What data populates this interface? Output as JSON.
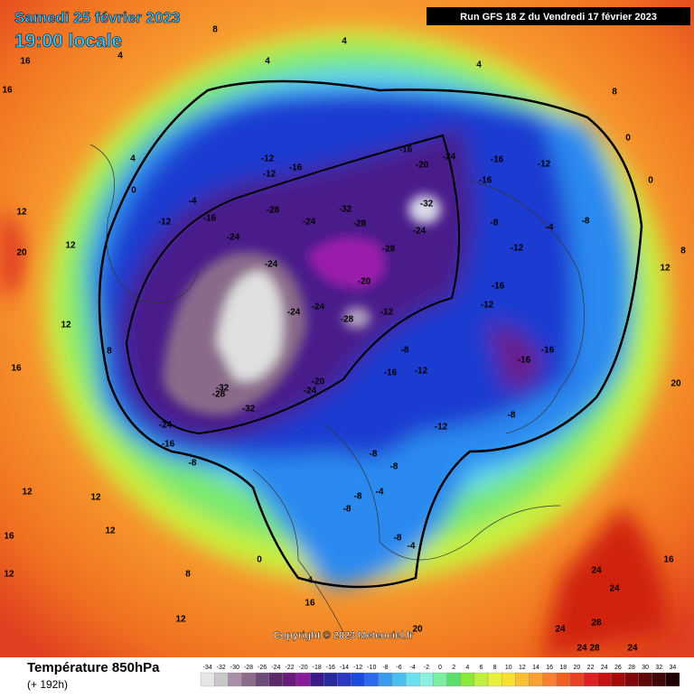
{
  "header": {
    "date": "Samedi 25 février 2023",
    "time": "19:00 locale",
    "run": "Run GFS 18 Z du Vendredi 17 février 2023"
  },
  "copyright": "Copyright © 2023 Meteociel.fr",
  "footer": {
    "title": "Température 850hPa",
    "subtitle": "(+ 192h)"
  },
  "scale": {
    "values": [
      -34,
      -32,
      -30,
      -28,
      -26,
      -24,
      -22,
      -20,
      -18,
      -16,
      -14,
      -12,
      -10,
      -8,
      -6,
      -4,
      -2,
      0,
      2,
      4,
      6,
      8,
      10,
      12,
      14,
      16,
      18,
      20,
      22,
      24,
      26,
      28,
      30,
      32,
      34
    ],
    "colors": [
      "#e6e6e6",
      "#c8c8c8",
      "#a890a8",
      "#8c6a8c",
      "#6e4a7a",
      "#5a2a6a",
      "#6a1a7a",
      "#8a1a9a",
      "#3a1a8a",
      "#2a2aa0",
      "#2a3ac0",
      "#1a4ae0",
      "#2a6af0",
      "#3a9af0",
      "#4ac0f0",
      "#6ae0f0",
      "#8af0e0",
      "#7af0a0",
      "#5ae06a",
      "#8ae83a",
      "#c0f03a",
      "#e8f03a",
      "#f8e030",
      "#f8c030",
      "#f8a030",
      "#f88030",
      "#f06020",
      "#e84020",
      "#e02020",
      "#c81010",
      "#a80808",
      "#800808",
      "#600808",
      "#400808",
      "#200000"
    ]
  },
  "map_labels": [
    8,
    4,
    4,
    4,
    4,
    16,
    16,
    8,
    4,
    0,
    -4,
    -12,
    -16,
    -12,
    -12,
    -16,
    -28,
    -24,
    -32,
    -28,
    -16,
    -20,
    -24,
    -32,
    -24,
    -16,
    -12,
    -16,
    -8,
    -12,
    -4,
    -8,
    0,
    0,
    12,
    8,
    -24,
    -28,
    -24,
    -20,
    -16,
    -12,
    -12,
    -28,
    -24,
    -24,
    -16,
    -16,
    -12,
    -16,
    -8,
    -20,
    -24,
    -32,
    -28,
    -32,
    -24,
    -16,
    -8,
    -12,
    -8,
    -8,
    -8,
    -4,
    -8,
    -8,
    -8,
    -4,
    12,
    20,
    12,
    12,
    8,
    16,
    12,
    12,
    16,
    12,
    12,
    8,
    0,
    4,
    12,
    16,
    20,
    24,
    24,
    28,
    24,
    24,
    20,
    16,
    24,
    28
  ]
}
